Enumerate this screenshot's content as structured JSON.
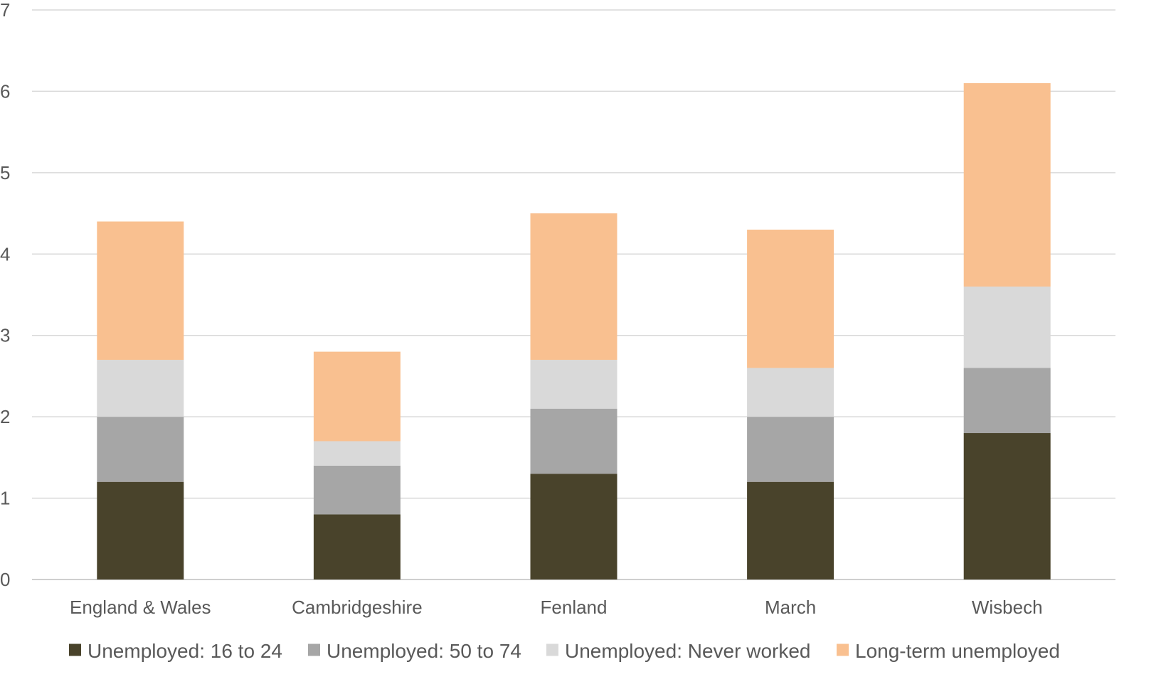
{
  "chart_data": {
    "type": "bar",
    "stacked": true,
    "title": "",
    "xlabel": "",
    "ylabel": "",
    "ylim": [
      0,
      7
    ],
    "yticks": [
      "0",
      "1",
      "2",
      "3",
      "4",
      "5",
      "6",
      "7"
    ],
    "grid": true,
    "legend_position": "bottom",
    "categories": [
      "England & Wales",
      "Cambridgeshire",
      "Fenland",
      "March",
      "Wisbech"
    ],
    "series": [
      {
        "name": "Unemployed: 16 to 24",
        "color": "#49432b",
        "values": [
          1.2,
          0.8,
          1.3,
          1.2,
          1.8
        ]
      },
      {
        "name": "Unemployed: 50 to 74",
        "color": "#a6a6a6",
        "values": [
          0.8,
          0.6,
          0.8,
          0.8,
          0.8
        ]
      },
      {
        "name": "Unemployed: Never worked",
        "color": "#d9d9d9",
        "values": [
          0.7,
          0.3,
          0.6,
          0.6,
          1.0
        ]
      },
      {
        "name": "Long-term unemployed",
        "color": "#f9c090",
        "values": [
          1.7,
          1.1,
          1.8,
          1.7,
          2.5
        ]
      }
    ]
  }
}
